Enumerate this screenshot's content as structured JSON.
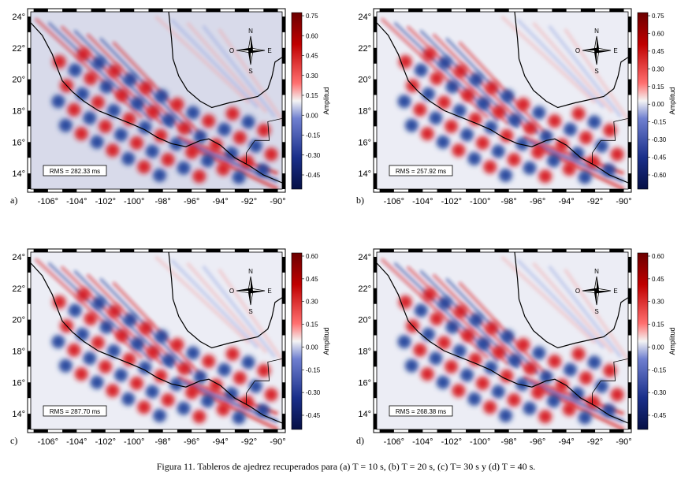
{
  "figure": {
    "caption": "Figura 11. Tableros de ajedrez recuperados para (a) T = 10 s, (b) T = 20 s, (c) T= 30 s y (d) T = 40 s."
  },
  "axes": {
    "x_ticks": [
      "-106°",
      "-104°",
      "-102°",
      "-100°",
      "-98°",
      "-96°",
      "-94°",
      "-92°",
      "-90°"
    ],
    "y_ticks": [
      "24°",
      "22°",
      "20°",
      "18°",
      "16°",
      "14°"
    ]
  },
  "compass": {
    "n": "N",
    "s": "S",
    "e": "E",
    "o": "O"
  },
  "colorbar_label": "Amplitud",
  "colors": {
    "red": "#d7191c",
    "blue": "#1f3f99",
    "background": "#d8daea"
  },
  "panels": [
    {
      "label": "a)",
      "rms": "RMS = 282.33 ms",
      "cbar_ticks": [
        "0.75",
        "0.60",
        "0.45",
        "0.30",
        "0.15",
        "0.00",
        "-0.15",
        "-0.30",
        "-0.45"
      ]
    },
    {
      "label": "b)",
      "rms": "RMS = 257.92 ms",
      "cbar_ticks": [
        "0.75",
        "0.60",
        "0.45",
        "0.30",
        "0.15",
        "0.00",
        "-0.15",
        "-0.30",
        "-0.45",
        "-0.60"
      ]
    },
    {
      "label": "c)",
      "rms": "RMS = 287.70 ms",
      "cbar_ticks": [
        "0.60",
        "0.45",
        "0.30",
        "0.15",
        "0.00",
        "-0.15",
        "-0.30",
        "-0.45"
      ]
    },
    {
      "label": "d)",
      "rms": "RMS = 268.38 ms",
      "cbar_ticks": [
        "0.60",
        "0.45",
        "0.30",
        "0.15",
        "0.00",
        "-0.15",
        "-0.30",
        "-0.45"
      ]
    }
  ]
}
